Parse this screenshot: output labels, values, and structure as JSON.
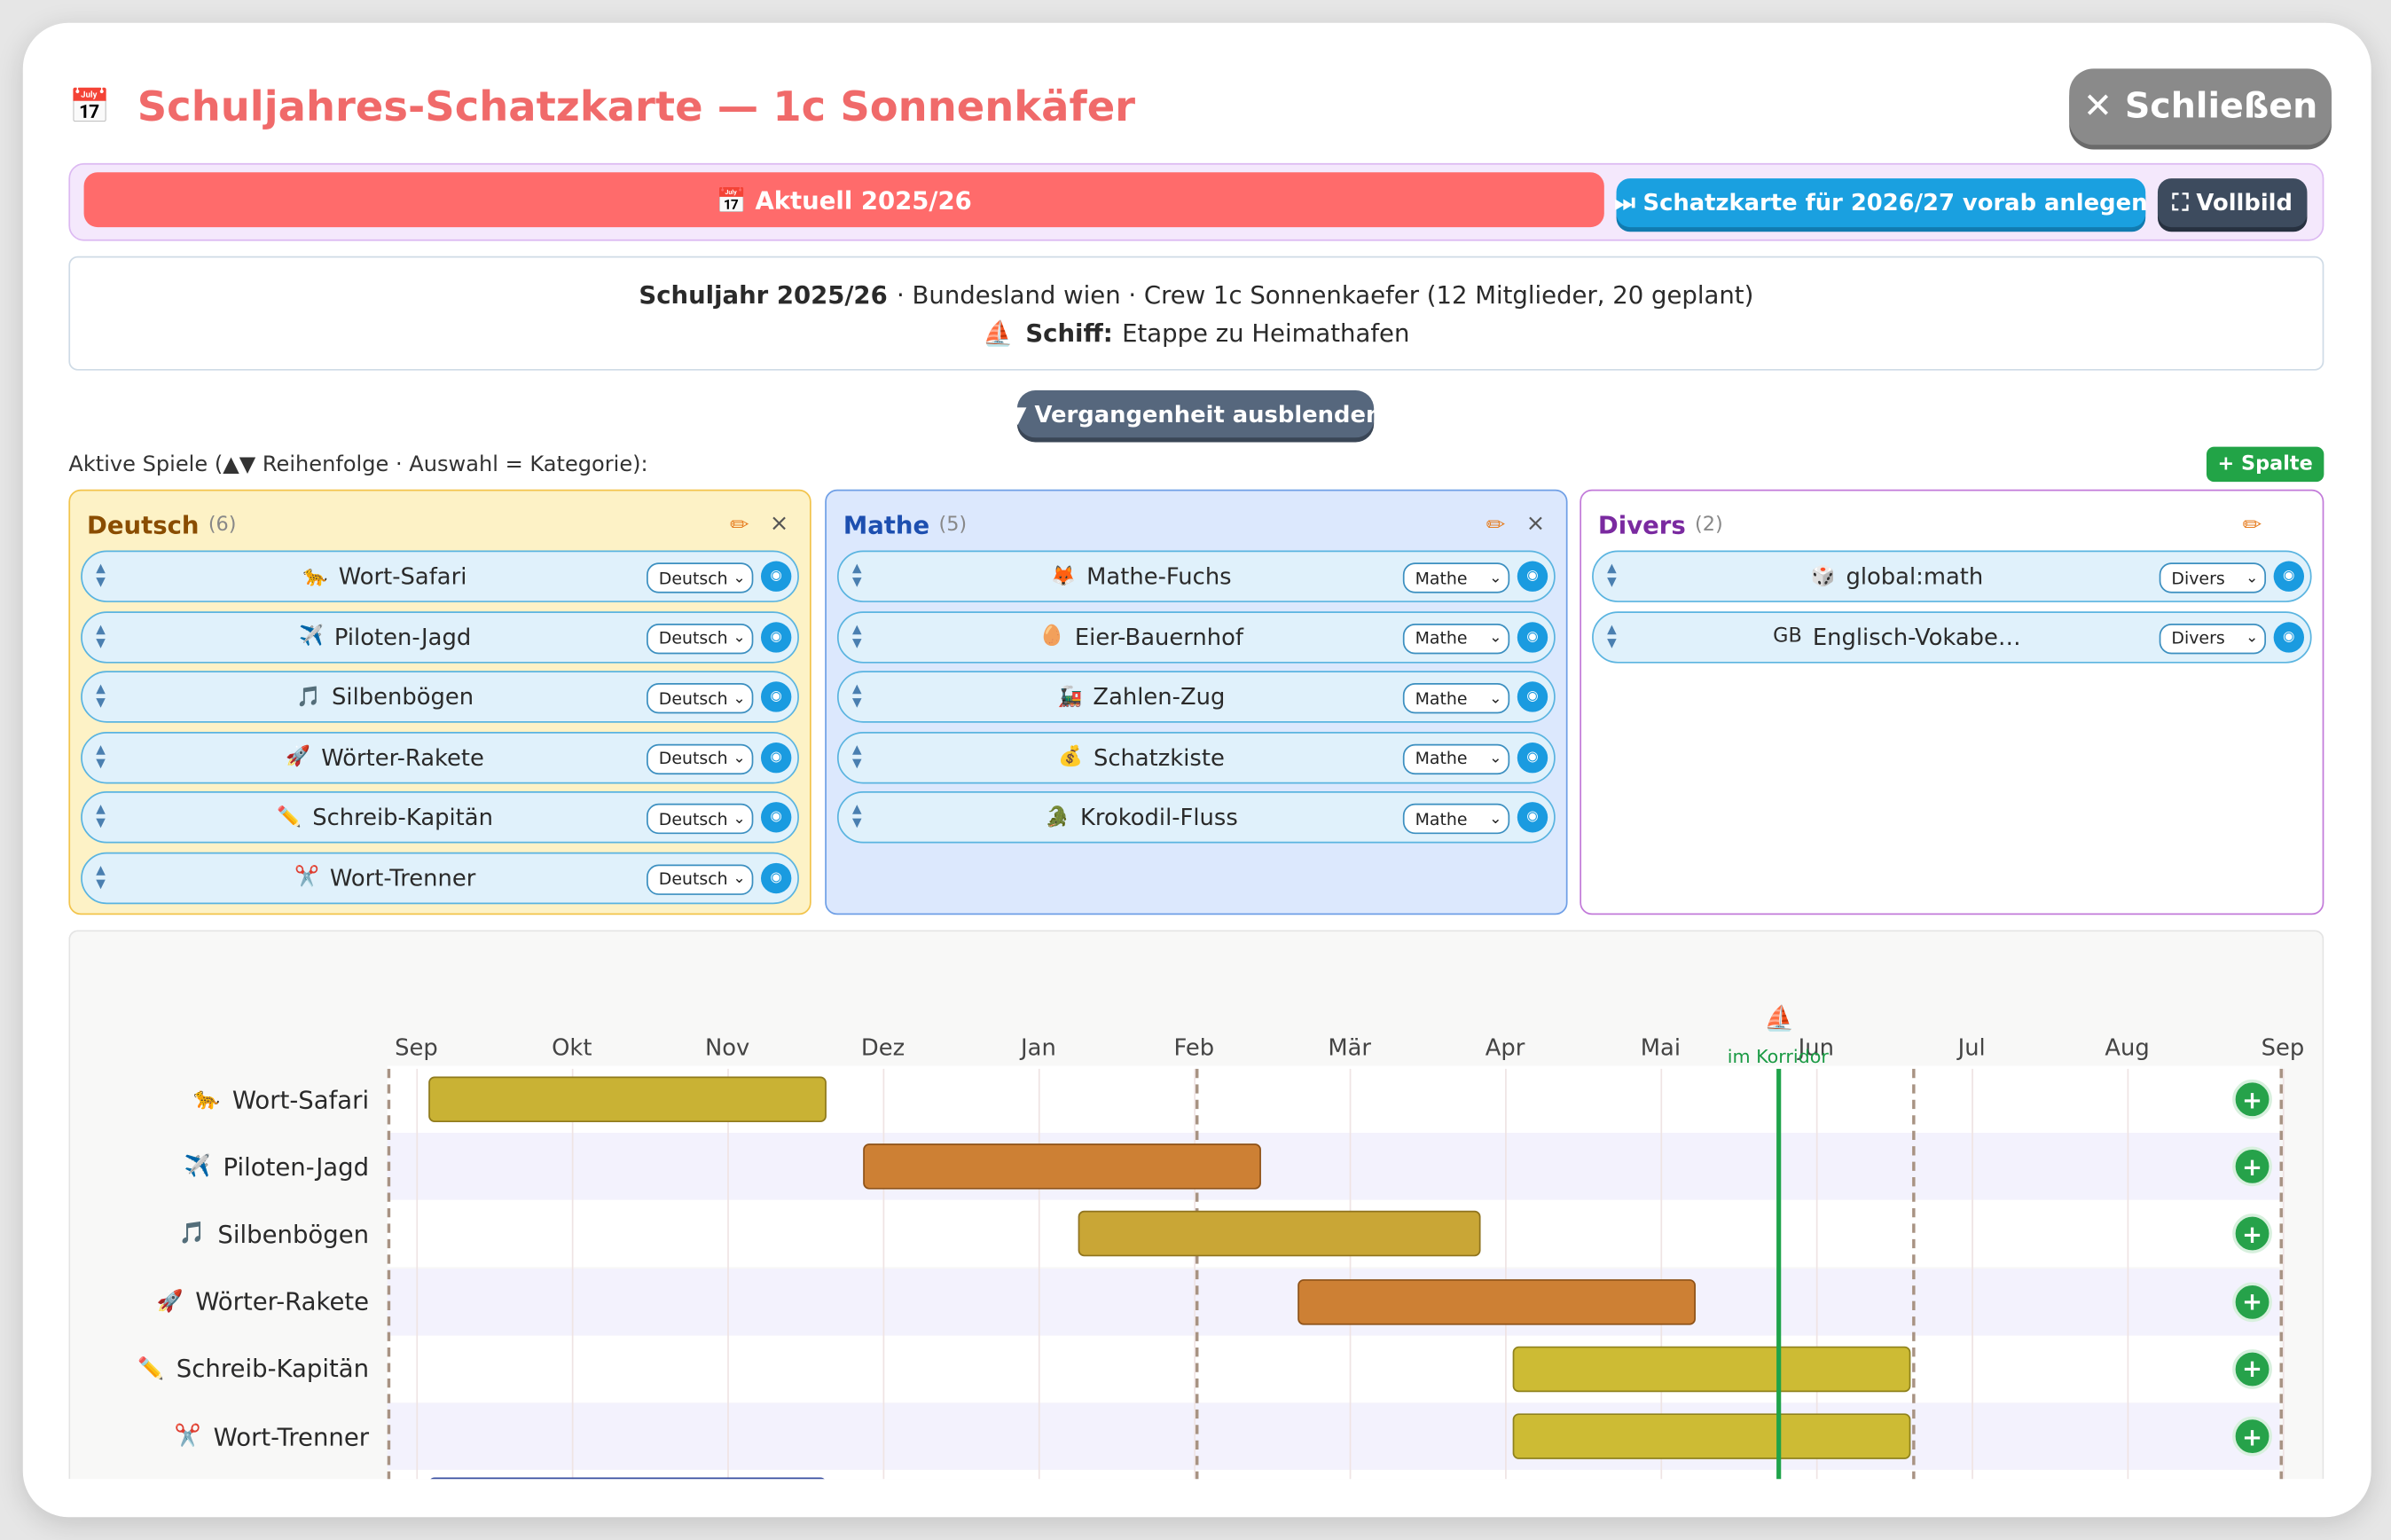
{
  "header": {
    "icon": "📅",
    "title": "Schuljahres-Schatzkarte — 1c Sonnenkäfer",
    "close": "✕ Schließen"
  },
  "tabs": {
    "current": "📅 Aktuell 2025/26",
    "next": "⏭ Schatzkarte für 2026/27 vorab anlegen",
    "fullscreen": "⛶ Vollbild"
  },
  "info": {
    "year_label": "Schuljahr 2025/26",
    "details": "· Bundesland wien · Crew 1c Sonnenkaefer (12 Mitglieder, 20 geplant)",
    "ship_icon": "⛵",
    "ship_label": "Schiff:",
    "ship_text": "Etappe zu Heimathafen"
  },
  "past_toggle": "▼ Vergangenheit ausblenden",
  "games_hint": "Aktive Spiele (▲▼ Reihenfolge · Auswahl = Kategorie):",
  "add_column": "+ Spalte",
  "columns": [
    {
      "name": "Deutsch",
      "count_label": "(6)",
      "games": [
        {
          "icon": "🐆",
          "name": "Wort-Safari",
          "category": "Deutsch"
        },
        {
          "icon": "✈️",
          "name": "Piloten-Jagd",
          "category": "Deutsch"
        },
        {
          "icon": "🎵",
          "name": "Silbenbögen",
          "category": "Deutsch"
        },
        {
          "icon": "🚀",
          "name": "Wörter-Rakete",
          "category": "Deutsch"
        },
        {
          "icon": "✏️",
          "name": "Schreib-Kapitän",
          "category": "Deutsch"
        },
        {
          "icon": "✂️",
          "name": "Wort-Trenner",
          "category": "Deutsch"
        }
      ]
    },
    {
      "name": "Mathe",
      "count_label": "(5)",
      "games": [
        {
          "icon": "🦊",
          "name": "Mathe-Fuchs",
          "category": "Mathe"
        },
        {
          "icon": "🥚",
          "name": "Eier-Bauernhof",
          "category": "Mathe"
        },
        {
          "icon": "🚂",
          "name": "Zahlen-Zug",
          "category": "Mathe"
        },
        {
          "icon": "💰",
          "name": "Schatzkiste",
          "category": "Mathe"
        },
        {
          "icon": "🐊",
          "name": "Krokodil-Fluss",
          "category": "Mathe"
        }
      ]
    },
    {
      "name": "Divers",
      "count_label": "(2)",
      "games": [
        {
          "icon": "🎲",
          "name": "global:math",
          "category": "Divers"
        },
        {
          "icon": "GB",
          "name": "Englisch-Vokabe…",
          "category": "Divers"
        }
      ]
    }
  ],
  "timeline": {
    "months": [
      "Sep",
      "Okt",
      "Nov",
      "Dez",
      "Jan",
      "Feb",
      "Mär",
      "Apr",
      "Mai",
      "Jun",
      "Jul",
      "Aug",
      "Sep"
    ],
    "marker_icon": "⛵",
    "marker_label": "im Korridor",
    "rows": [
      {
        "icon": "🐆",
        "name": "Wort-Safari"
      },
      {
        "icon": "✈️",
        "name": "Piloten-Jagd"
      },
      {
        "icon": "🎵",
        "name": "Silbenbögen"
      },
      {
        "icon": "🚀",
        "name": "Wörter-Rakete"
      },
      {
        "icon": "✏️",
        "name": "Schreib-Kapitän"
      },
      {
        "icon": "✂️",
        "name": "Wort-Trenner"
      }
    ]
  }
}
